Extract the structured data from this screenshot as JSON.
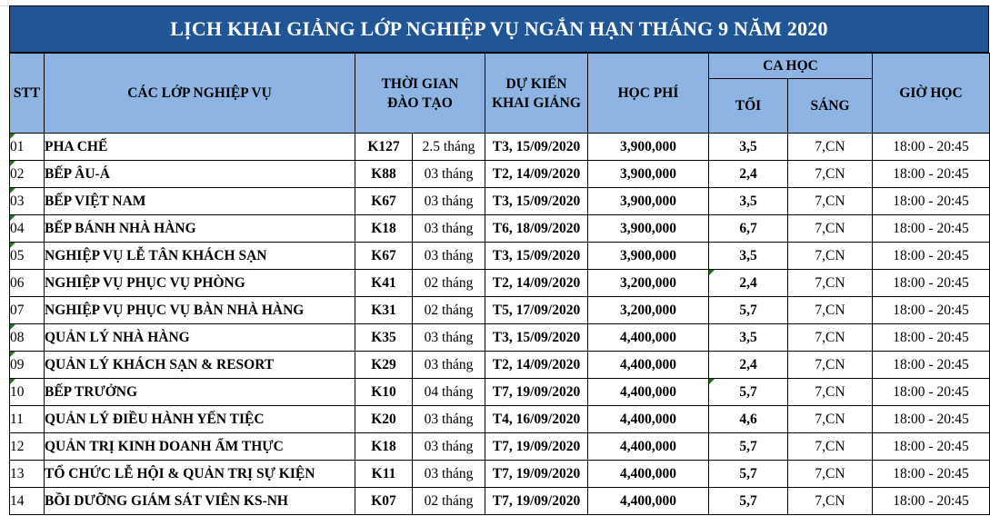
{
  "title": "LỊCH KHAI GIẢNG LỚP NGHIỆP VỤ NGẮN HẠN THÁNG 9 NĂM 2020",
  "headers": {
    "stt": "STT",
    "course": "CÁC LỚP NGHIỆP VỤ",
    "duration_line1": "THỜI GIAN",
    "duration_line2": "ĐÀO TẠO",
    "start_line1": "DỰ KIẾN",
    "start_line2": "KHAI GIẢNG",
    "fee": "HỌC PHÍ",
    "shift_group": "CA HỌC",
    "shift_evening": "TỐI",
    "shift_morning": "SÁNG",
    "hours": "GIỜ HỌC"
  },
  "rows": [
    {
      "stt": "01",
      "course": "PHA CHẾ",
      "code": "K127",
      "duration": "2.5 tháng",
      "start": "T3, 15/09/2020",
      "fee": "3,900,000",
      "evening": "3,5",
      "morning": "7,CN",
      "hours": "18:00 - 20:45"
    },
    {
      "stt": "02",
      "course": "BẾP ÂU-Á",
      "code": "K88",
      "duration": "03 tháng",
      "start": "T2, 14/09/2020",
      "fee": "3,900,000",
      "evening": "2,4",
      "morning": "7,CN",
      "hours": "18:00 - 20:45"
    },
    {
      "stt": "03",
      "course": "BẾP VIỆT NAM",
      "code": "K67",
      "duration": "03 tháng",
      "start": "T3, 15/09/2020",
      "fee": "3,900,000",
      "evening": "3,5",
      "morning": "7,CN",
      "hours": "18:00 - 20:45"
    },
    {
      "stt": "04",
      "course": "BẾP BÁNH NHÀ HÀNG",
      "code": "K18",
      "duration": "03 tháng",
      "start": "T6, 18/09/2020",
      "fee": "3,900,000",
      "evening": "6,7",
      "morning": "7,CN",
      "hours": "18:00 - 20:45"
    },
    {
      "stt": "05",
      "course": "NGHIỆP VỤ LỄ TÂN KHÁCH SẠN",
      "code": "K67",
      "duration": "03 tháng",
      "start": "T3, 15/09/2020",
      "fee": "3,900,000",
      "evening": "3,5",
      "morning": "7,CN",
      "hours": "18:00 - 20:45"
    },
    {
      "stt": "06",
      "course": "NGHIỆP VỤ PHỤC VỤ PHÒNG",
      "code": "K41",
      "duration": "02 tháng",
      "start": "T2, 14/09/2020",
      "fee": "3,200,000",
      "evening": "2,4",
      "morning": "7,CN",
      "hours": "18:00 - 20:45"
    },
    {
      "stt": "07",
      "course": "NGHIỆP VỤ PHỤC VỤ BÀN NHÀ HÀNG",
      "code": "K31",
      "duration": "02 tháng",
      "start": "T5, 17/09/2020",
      "fee": "3,200,000",
      "evening": "5,7",
      "morning": "7,CN",
      "hours": "18:00 - 20:45"
    },
    {
      "stt": "08",
      "course": "QUẢN LÝ NHÀ HÀNG",
      "code": "K35",
      "duration": "03 tháng",
      "start": "T3, 15/09/2020",
      "fee": "4,400,000",
      "evening": "3,5",
      "morning": "7,CN",
      "hours": "18:00 - 20:45"
    },
    {
      "stt": "09",
      "course": "QUẢN LÝ KHÁCH SẠN & RESORT",
      "code": "K29",
      "duration": "03 tháng",
      "start": "T2, 14/09/2020",
      "fee": "4,400,000",
      "evening": "2,4",
      "morning": "7,CN",
      "hours": "18:00 - 20:45"
    },
    {
      "stt": "10",
      "course": "BẾP TRƯỞNG",
      "code": "K10",
      "duration": "04 tháng",
      "start": "T7, 19/09/2020",
      "fee": "4,400,000",
      "evening": "5,7",
      "morning": "7,CN",
      "hours": "18:00 - 20:45"
    },
    {
      "stt": "11",
      "course": "QUẢN LÝ ĐIỀU HÀNH YẾN TIỆC",
      "code": "K20",
      "duration": "03 tháng",
      "start": "T4, 16/09/2020",
      "fee": "4,400,000",
      "evening": "4,6",
      "morning": "7,CN",
      "hours": "18:00 - 20:45"
    },
    {
      "stt": "12",
      "course": "QUẢN TRỊ KINH DOANH ẨM THỰC",
      "code": "K18",
      "duration": "03 tháng",
      "start": "T7, 19/09/2020",
      "fee": "4,400,000",
      "evening": "5,7",
      "morning": "7,CN",
      "hours": "18:00 - 20:45"
    },
    {
      "stt": "13",
      "course": "TỔ CHỨC LỄ HỘI & QUẢN TRỊ SỰ KIỆN",
      "code": "K11",
      "duration": "03 tháng",
      "start": "T7, 19/09/2020",
      "fee": "4,400,000",
      "evening": "5,7",
      "morning": "7,CN",
      "hours": "18:00 - 20:45"
    },
    {
      "stt": "14",
      "course": "BỒI DƯỠNG GIÁM SÁT VIÊN KS-NH",
      "code": "K07",
      "duration": "02 tháng",
      "start": "T7, 19/09/2020",
      "fee": "4,400,000",
      "evening": "5,7",
      "morning": "7,CN",
      "hours": "18:00 - 20:45"
    }
  ],
  "colors": {
    "title_bg": "#215696",
    "header_bg": "#8eb4e3",
    "comment_marker": "#1a7a1a"
  }
}
